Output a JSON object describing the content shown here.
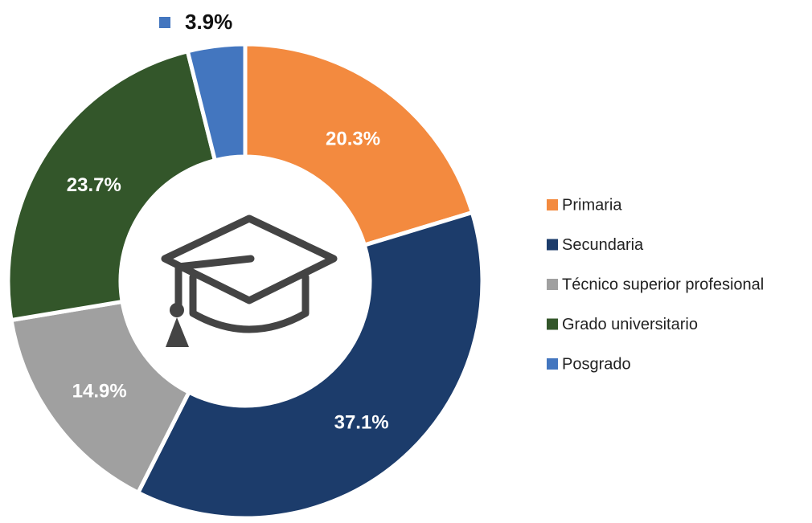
{
  "chart_data": {
    "type": "donut",
    "categories": [
      "Primaria",
      "Secundaria",
      "Técnico superior profesional",
      "Grado universitario",
      "Posgrado"
    ],
    "values": [
      20.3,
      37.1,
      14.9,
      23.7,
      3.9
    ],
    "value_labels": [
      "20.3%",
      "37.1%",
      "14.9%",
      "23.7%",
      "3.9%"
    ],
    "colors": [
      "#f38a3f",
      "#1c3c6b",
      "#a0a0a0",
      "#33562a",
      "#4376bf"
    ],
    "legend": "right"
  }
}
